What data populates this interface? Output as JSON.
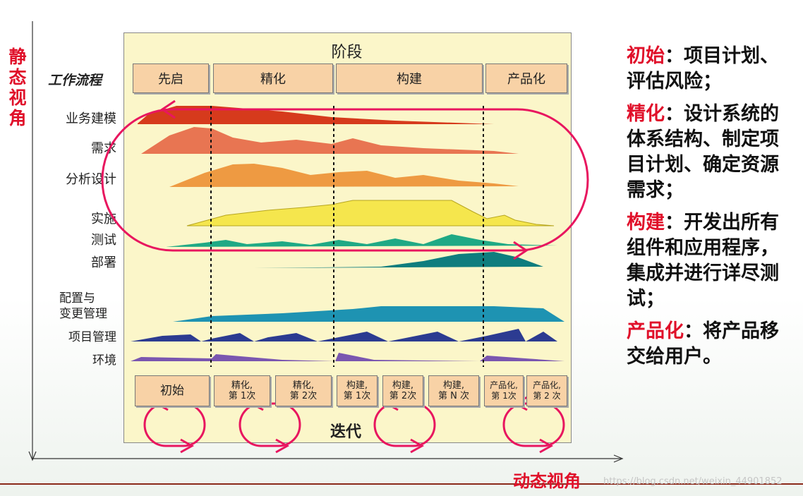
{
  "static_view_label": "静态视角",
  "dynamic_view_label": "动态视角",
  "watermark": "https://blog.csdn.net/weixin_44901852",
  "diagram": {
    "phase_header": "阶段",
    "workflow_header": "工作流程",
    "phases": [
      "先启",
      "精化",
      "构建",
      "产品化"
    ],
    "workflows": [
      "业务建模",
      "需求",
      "分析设计",
      "实施",
      "测试",
      "部署",
      "配置与",
      "变更管理",
      "项目管理",
      "环境"
    ],
    "iterations": [
      {
        "line1": "初始",
        "line2": ""
      },
      {
        "line1": "精化,",
        "line2": "第 1次"
      },
      {
        "line1": "精化,",
        "line2": "第 2次"
      },
      {
        "line1": "构建,",
        "line2": "第 1次"
      },
      {
        "line1": "构建,",
        "line2": "第 2次"
      },
      {
        "line1": "构建,",
        "line2": "第 N 次"
      },
      {
        "line1": "产品化,",
        "line2": "第 1次"
      },
      {
        "line1": "产品化,",
        "line2": "第 2 次"
      }
    ],
    "iteration_label": "迭代"
  },
  "descriptions": [
    {
      "term": "初始",
      "text": "：项目计划、评估风险；"
    },
    {
      "term": "精化",
      "text": "：设计系统的体系结构、制定项目计划、确定资源需求；"
    },
    {
      "term": "构建",
      "text": "：开发出所有组件和应用程序，集成并进行详尽测试；"
    },
    {
      "term": "产品化",
      "text": "：将产品移交给用户。"
    }
  ],
  "colors": {
    "accent_red": "#e0102a",
    "highlight_pink": "#e8165f",
    "diagram_bg": "#fbf6c9",
    "box_fill": "#f8d2a6"
  }
}
